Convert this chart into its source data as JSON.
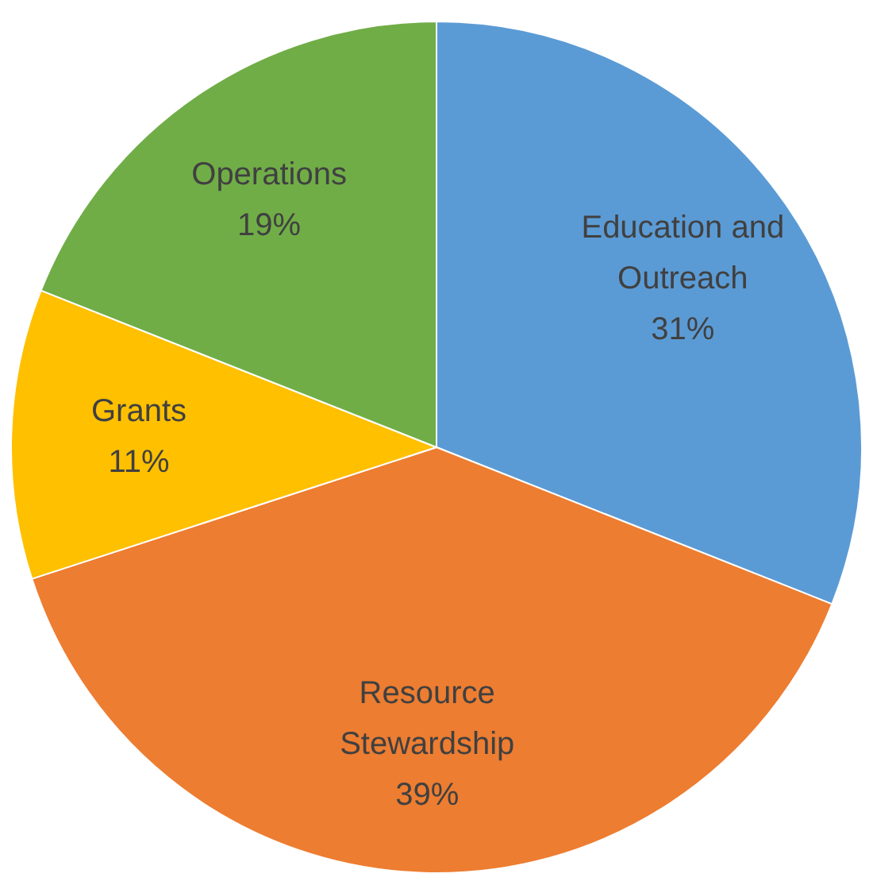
{
  "chart_data": {
    "type": "pie",
    "categories": [
      "Education and Outreach",
      "Resource Stewardship",
      "Grants",
      "Operations"
    ],
    "values": [
      31,
      39,
      11,
      19
    ],
    "colors": [
      "#5b9bd5",
      "#ed7d31",
      "#ffc000",
      "#70ad47"
    ],
    "value_labels": [
      "31%",
      "39%",
      "11%",
      "19%"
    ],
    "legend": false
  }
}
